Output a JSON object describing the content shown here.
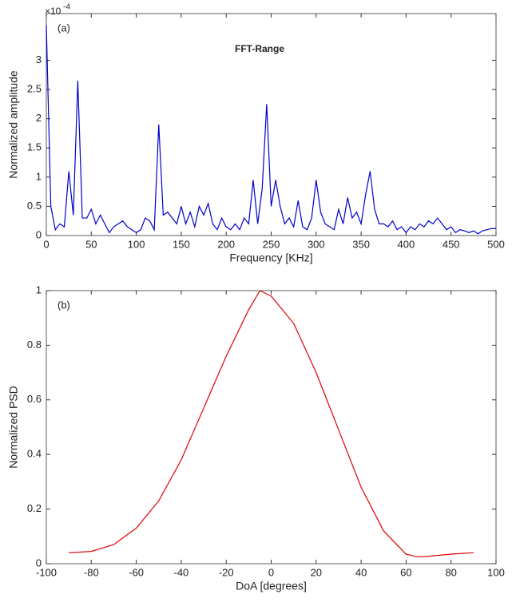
{
  "chart_data": [
    {
      "type": "line",
      "panel_label": "(a)",
      "title": "FFT-Range",
      "ylabel": "Normalized amplitude",
      "xlabel": "Frequency [KHz]",
      "exponent_base": "×10",
      "exponent_power": "-4",
      "xlim": [
        0,
        500
      ],
      "ylim": [
        0,
        3.8
      ],
      "xticks": [
        0,
        50,
        100,
        150,
        200,
        250,
        300,
        350,
        400,
        450,
        500
      ],
      "yticks": [
        0,
        0.5,
        1,
        1.5,
        2,
        2.5,
        3
      ],
      "x": [
        0,
        5,
        10,
        15,
        20,
        25,
        30,
        35,
        40,
        45,
        50,
        55,
        60,
        65,
        70,
        75,
        80,
        85,
        90,
        95,
        100,
        105,
        110,
        115,
        120,
        125,
        130,
        135,
        140,
        145,
        150,
        155,
        160,
        165,
        170,
        175,
        180,
        185,
        190,
        195,
        200,
        205,
        210,
        215,
        220,
        225,
        230,
        235,
        240,
        245,
        250,
        255,
        260,
        265,
        270,
        275,
        280,
        285,
        290,
        295,
        300,
        305,
        310,
        315,
        320,
        325,
        330,
        335,
        340,
        345,
        350,
        355,
        360,
        365,
        370,
        375,
        380,
        385,
        390,
        395,
        400,
        405,
        410,
        415,
        420,
        425,
        430,
        435,
        440,
        445,
        450,
        455,
        460,
        465,
        470,
        475,
        480,
        485,
        490,
        495,
        500
      ],
      "series": [
        {
          "name": "FFT",
          "color": "#0000cc",
          "values": [
            3.6,
            0.5,
            0.1,
            0.2,
            0.15,
            1.1,
            0.35,
            2.65,
            0.3,
            0.3,
            0.45,
            0.2,
            0.35,
            0.2,
            0.05,
            0.15,
            0.2,
            0.25,
            0.15,
            0.1,
            0.05,
            0.1,
            0.3,
            0.25,
            0.1,
            1.9,
            0.35,
            0.4,
            0.3,
            0.2,
            0.5,
            0.2,
            0.4,
            0.15,
            0.5,
            0.35,
            0.55,
            0.2,
            0.1,
            0.3,
            0.15,
            0.1,
            0.2,
            0.1,
            0.3,
            0.2,
            0.95,
            0.2,
            0.8,
            2.25,
            0.5,
            0.95,
            0.5,
            0.2,
            0.3,
            0.15,
            0.6,
            0.15,
            0.1,
            0.3,
            0.95,
            0.4,
            0.2,
            0.15,
            0.1,
            0.45,
            0.2,
            0.65,
            0.3,
            0.4,
            0.2,
            0.7,
            1.1,
            0.45,
            0.2,
            0.2,
            0.15,
            0.25,
            0.1,
            0.15,
            0.05,
            0.15,
            0.1,
            0.2,
            0.15,
            0.25,
            0.2,
            0.3,
            0.2,
            0.1,
            0.15,
            0.05,
            0.1,
            0.08,
            0.05,
            0.08,
            0.03,
            0.08,
            0.1,
            0.12,
            0.12
          ]
        }
      ]
    },
    {
      "type": "line",
      "panel_label": "(b)",
      "ylabel": "Normalized PSD",
      "xlabel": "DoA [degrees]",
      "xlim": [
        -100,
        100
      ],
      "ylim": [
        0,
        1
      ],
      "xticks": [
        -100,
        -80,
        -60,
        -40,
        -20,
        0,
        20,
        40,
        60,
        80,
        100
      ],
      "yticks": [
        0,
        0.2,
        0.4,
        0.6,
        0.8,
        1
      ],
      "x": [
        -90,
        -80,
        -70,
        -60,
        -50,
        -40,
        -30,
        -20,
        -10,
        -5,
        0,
        10,
        20,
        30,
        40,
        50,
        60,
        65,
        70,
        80,
        90
      ],
      "series": [
        {
          "name": "PSD",
          "color": "#e00000",
          "values": [
            0.04,
            0.045,
            0.07,
            0.13,
            0.23,
            0.38,
            0.57,
            0.76,
            0.93,
            1,
            0.98,
            0.88,
            0.7,
            0.49,
            0.28,
            0.12,
            0.035,
            0.025,
            0.027,
            0.035,
            0.04
          ]
        }
      ]
    }
  ]
}
